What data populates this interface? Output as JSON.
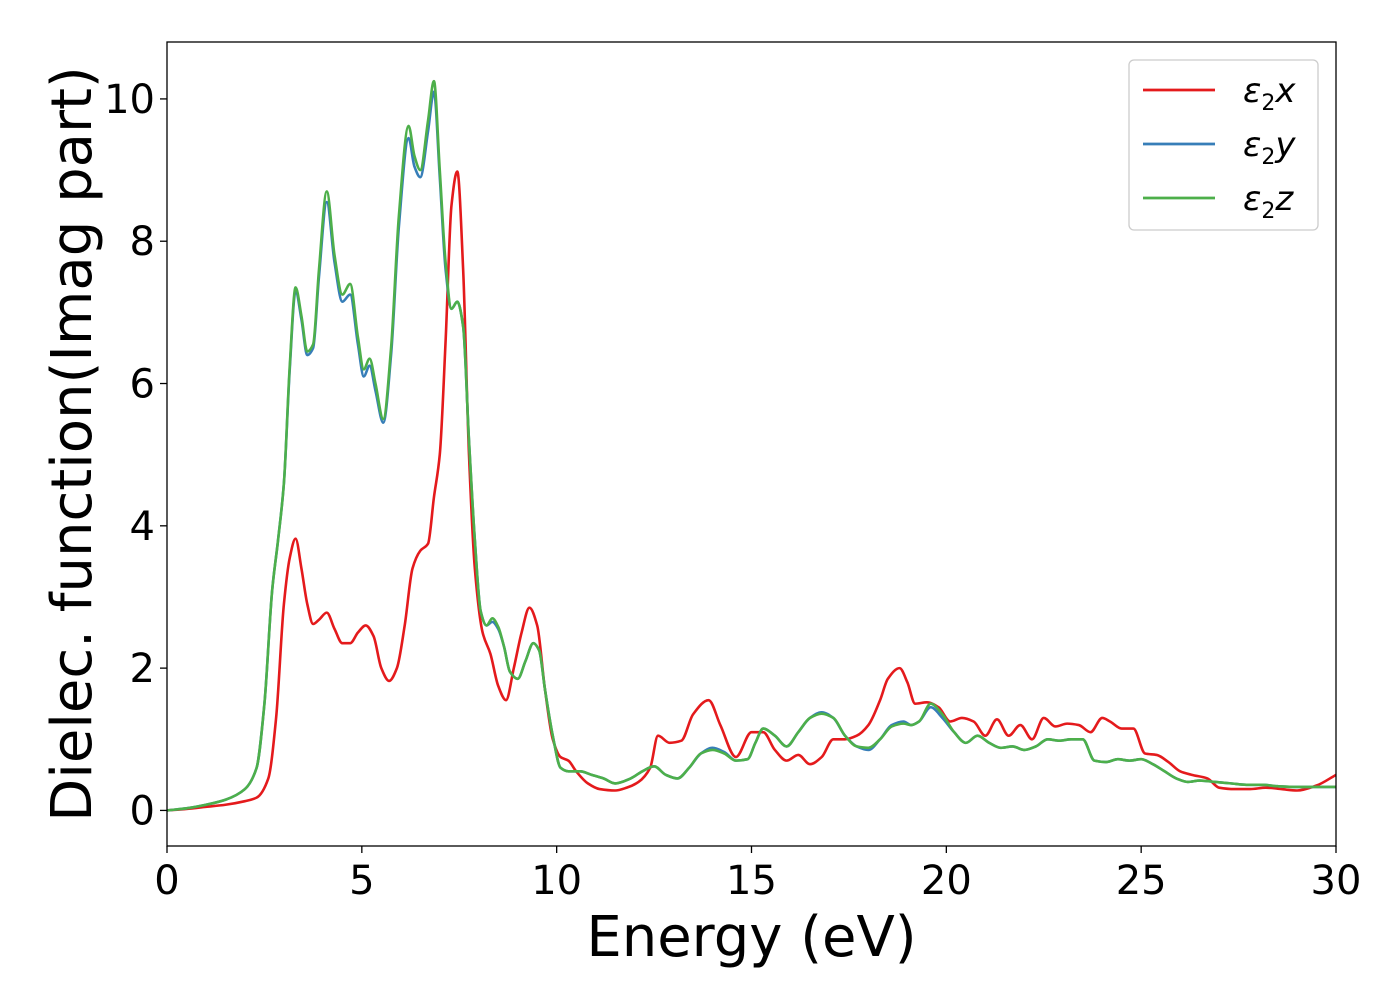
{
  "chart_data": {
    "type": "line",
    "title": "",
    "xlabel": "Energy (eV)",
    "ylabel": "Dielec. function(Imag part)",
    "xlim": [
      0,
      30
    ],
    "ylim": [
      -0.5,
      10.8
    ],
    "xticks": [
      0,
      5,
      10,
      15,
      20,
      25,
      30
    ],
    "yticks": [
      0,
      2,
      4,
      6,
      8,
      10
    ],
    "grid": false,
    "legend_position": "top-right",
    "series": [
      {
        "name": "ε2x",
        "legend": {
          "base": "ε",
          "sub": "2",
          "var": "x"
        },
        "color": "#e41a1c",
        "x": [
          0,
          0.5,
          1.0,
          1.5,
          2.0,
          2.3,
          2.6,
          2.8,
          3.0,
          3.15,
          3.3,
          3.45,
          3.6,
          3.75,
          3.9,
          4.1,
          4.3,
          4.5,
          4.7,
          4.9,
          5.1,
          5.3,
          5.5,
          5.7,
          5.9,
          6.1,
          6.3,
          6.5,
          6.7,
          6.85,
          7.0,
          7.15,
          7.3,
          7.45,
          7.6,
          7.75,
          7.9,
          8.1,
          8.3,
          8.5,
          8.7,
          8.9,
          9.1,
          9.3,
          9.5,
          9.7,
          9.9,
          10.1,
          10.3,
          10.5,
          10.8,
          11.1,
          11.5,
          11.8,
          12.1,
          12.4,
          12.6,
          12.9,
          13.2,
          13.5,
          13.9,
          14.2,
          14.6,
          15.0,
          15.3,
          15.6,
          15.9,
          16.2,
          16.5,
          16.8,
          17.1,
          17.4,
          17.7,
          18.0,
          18.3,
          18.5,
          18.8,
          19.0,
          19.2,
          19.5,
          19.8,
          20.1,
          20.4,
          20.7,
          21.0,
          21.3,
          21.6,
          21.9,
          22.2,
          22.5,
          22.8,
          23.1,
          23.4,
          23.7,
          24.0,
          24.2,
          24.5,
          24.8,
          25.1,
          25.4,
          25.7,
          26.0,
          26.3,
          26.7,
          27.0,
          27.4,
          27.8,
          28.2,
          28.6,
          29.0,
          29.5,
          30.0
        ],
        "y": [
          0.0,
          0.02,
          0.05,
          0.08,
          0.13,
          0.18,
          0.45,
          1.3,
          2.9,
          3.55,
          3.82,
          3.4,
          2.9,
          2.62,
          2.68,
          2.78,
          2.55,
          2.35,
          2.35,
          2.5,
          2.6,
          2.45,
          2.0,
          1.82,
          2.0,
          2.6,
          3.4,
          3.65,
          3.75,
          4.4,
          5.0,
          6.6,
          8.5,
          8.98,
          7.6,
          5.0,
          3.4,
          2.5,
          2.2,
          1.75,
          1.55,
          2.0,
          2.5,
          2.85,
          2.6,
          1.7,
          1.0,
          0.75,
          0.7,
          0.55,
          0.38,
          0.3,
          0.28,
          0.32,
          0.4,
          0.6,
          1.05,
          0.95,
          0.98,
          1.35,
          1.55,
          1.2,
          0.75,
          1.1,
          1.1,
          0.85,
          0.7,
          0.78,
          0.65,
          0.75,
          1.0,
          1.0,
          1.05,
          1.2,
          1.55,
          1.85,
          2.0,
          1.8,
          1.5,
          1.52,
          1.45,
          1.25,
          1.3,
          1.25,
          1.05,
          1.28,
          1.05,
          1.2,
          1.0,
          1.3,
          1.18,
          1.22,
          1.2,
          1.1,
          1.3,
          1.25,
          1.15,
          1.15,
          0.8,
          0.78,
          0.68,
          0.55,
          0.5,
          0.45,
          0.32,
          0.3,
          0.3,
          0.32,
          0.3,
          0.28,
          0.35,
          0.5
        ]
      },
      {
        "name": "ε2y",
        "legend": {
          "base": "ε",
          "sub": "2",
          "var": "y"
        },
        "color": "#377eb8",
        "x": [
          0,
          0.5,
          1.0,
          1.5,
          2.0,
          2.3,
          2.5,
          2.7,
          2.85,
          3.0,
          3.15,
          3.3,
          3.45,
          3.6,
          3.75,
          3.9,
          4.1,
          4.3,
          4.5,
          4.7,
          4.9,
          5.05,
          5.2,
          5.35,
          5.55,
          5.75,
          5.95,
          6.2,
          6.35,
          6.5,
          6.7,
          6.85,
          7.0,
          7.15,
          7.3,
          7.45,
          7.6,
          7.75,
          7.9,
          8.05,
          8.2,
          8.35,
          8.5,
          8.65,
          8.8,
          9.0,
          9.2,
          9.4,
          9.55,
          9.7,
          9.9,
          10.1,
          10.3,
          10.6,
          10.9,
          11.2,
          11.5,
          11.9,
          12.2,
          12.5,
          12.8,
          13.1,
          13.4,
          13.7,
          14.0,
          14.3,
          14.6,
          14.9,
          15.1,
          15.3,
          15.6,
          15.9,
          16.2,
          16.5,
          16.8,
          17.1,
          17.4,
          17.7,
          18.0,
          18.3,
          18.6,
          18.9,
          19.1,
          19.3,
          19.6,
          19.9,
          20.2,
          20.5,
          20.8,
          21.1,
          21.4,
          21.7,
          22.0,
          22.3,
          22.6,
          22.9,
          23.2,
          23.5,
          23.8,
          24.1,
          24.4,
          24.7,
          25.0,
          25.3,
          25.6,
          25.9,
          26.2,
          26.5,
          26.9,
          27.3,
          27.7,
          28.1,
          28.5,
          29.0,
          29.5,
          30.0
        ],
        "y": [
          0.0,
          0.03,
          0.08,
          0.15,
          0.3,
          0.6,
          1.5,
          3.1,
          3.8,
          4.6,
          6.2,
          7.3,
          6.9,
          6.4,
          6.5,
          7.5,
          8.55,
          7.7,
          7.15,
          7.25,
          6.55,
          6.1,
          6.25,
          5.9,
          5.45,
          6.4,
          8.2,
          9.45,
          9.05,
          8.9,
          9.55,
          10.1,
          8.9,
          7.6,
          7.05,
          7.15,
          6.8,
          5.2,
          3.8,
          2.8,
          2.6,
          2.65,
          2.55,
          2.3,
          1.95,
          1.85,
          2.1,
          2.35,
          2.25,
          1.7,
          1.05,
          0.6,
          0.55,
          0.55,
          0.5,
          0.45,
          0.38,
          0.45,
          0.55,
          0.62,
          0.5,
          0.45,
          0.6,
          0.8,
          0.88,
          0.82,
          0.7,
          0.72,
          0.95,
          1.15,
          1.05,
          0.9,
          1.1,
          1.3,
          1.38,
          1.3,
          1.05,
          0.9,
          0.85,
          1.0,
          1.2,
          1.25,
          1.2,
          1.25,
          1.45,
          1.3,
          1.1,
          0.95,
          1.05,
          0.95,
          0.88,
          0.9,
          0.85,
          0.9,
          1.0,
          0.98,
          1.0,
          1.0,
          0.7,
          0.68,
          0.72,
          0.7,
          0.72,
          0.65,
          0.55,
          0.45,
          0.4,
          0.42,
          0.4,
          0.38,
          0.36,
          0.36,
          0.34,
          0.33,
          0.33,
          0.33
        ]
      },
      {
        "name": "ε2z",
        "legend": {
          "base": "ε",
          "sub": "2",
          "var": "z"
        },
        "color": "#4daf4a",
        "x": [
          0,
          0.5,
          1.0,
          1.5,
          2.0,
          2.3,
          2.5,
          2.7,
          2.85,
          3.0,
          3.15,
          3.3,
          3.45,
          3.6,
          3.75,
          3.9,
          4.1,
          4.3,
          4.5,
          4.7,
          4.9,
          5.05,
          5.2,
          5.35,
          5.55,
          5.75,
          5.95,
          6.2,
          6.35,
          6.5,
          6.7,
          6.85,
          7.0,
          7.15,
          7.3,
          7.45,
          7.6,
          7.75,
          7.9,
          8.05,
          8.2,
          8.35,
          8.5,
          8.65,
          8.8,
          9.0,
          9.2,
          9.4,
          9.55,
          9.7,
          9.9,
          10.1,
          10.3,
          10.6,
          10.9,
          11.2,
          11.5,
          11.9,
          12.2,
          12.5,
          12.8,
          13.1,
          13.4,
          13.7,
          14.0,
          14.3,
          14.6,
          14.9,
          15.1,
          15.3,
          15.6,
          15.9,
          16.2,
          16.5,
          16.8,
          17.1,
          17.4,
          17.7,
          18.0,
          18.3,
          18.6,
          18.9,
          19.1,
          19.3,
          19.6,
          19.9,
          20.2,
          20.5,
          20.8,
          21.1,
          21.4,
          21.7,
          22.0,
          22.3,
          22.6,
          22.9,
          23.2,
          23.5,
          23.8,
          24.1,
          24.4,
          24.7,
          25.0,
          25.3,
          25.6,
          25.9,
          26.2,
          26.5,
          26.9,
          27.3,
          27.7,
          28.1,
          28.5,
          29.0,
          29.5,
          30.0
        ],
        "y": [
          0.0,
          0.03,
          0.08,
          0.15,
          0.3,
          0.6,
          1.5,
          3.1,
          3.8,
          4.6,
          6.25,
          7.35,
          6.95,
          6.45,
          6.55,
          7.6,
          8.7,
          7.8,
          7.25,
          7.4,
          6.65,
          6.2,
          6.35,
          6.0,
          5.5,
          6.5,
          8.35,
          9.62,
          9.2,
          9.0,
          9.7,
          10.25,
          9.0,
          7.7,
          7.05,
          7.15,
          6.8,
          5.2,
          3.8,
          2.8,
          2.6,
          2.7,
          2.58,
          2.3,
          1.95,
          1.85,
          2.1,
          2.35,
          2.25,
          1.7,
          1.05,
          0.6,
          0.55,
          0.55,
          0.5,
          0.45,
          0.38,
          0.45,
          0.55,
          0.62,
          0.5,
          0.45,
          0.6,
          0.8,
          0.85,
          0.8,
          0.7,
          0.72,
          0.95,
          1.15,
          1.05,
          0.9,
          1.1,
          1.3,
          1.36,
          1.3,
          1.05,
          0.9,
          0.88,
          1.0,
          1.18,
          1.22,
          1.2,
          1.25,
          1.5,
          1.35,
          1.1,
          0.95,
          1.05,
          0.95,
          0.88,
          0.9,
          0.85,
          0.9,
          1.0,
          0.98,
          1.0,
          1.0,
          0.7,
          0.68,
          0.72,
          0.7,
          0.72,
          0.65,
          0.55,
          0.45,
          0.4,
          0.42,
          0.4,
          0.38,
          0.36,
          0.36,
          0.34,
          0.33,
          0.33,
          0.33
        ]
      }
    ]
  }
}
